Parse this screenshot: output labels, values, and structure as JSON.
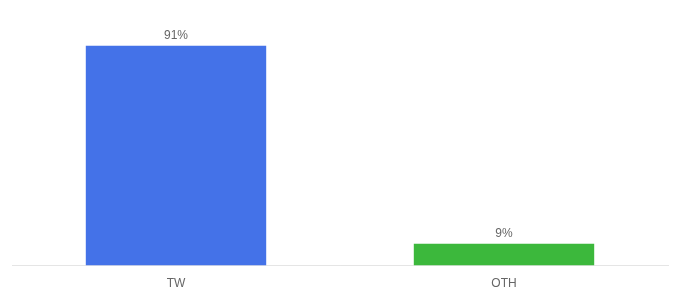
{
  "chart_data": {
    "type": "bar",
    "categories": [
      "TW",
      "OTH"
    ],
    "values": [
      91,
      9
    ],
    "value_labels": [
      "91%",
      "9%"
    ],
    "colors": [
      "#4472e8",
      "#3cb83c"
    ],
    "ylim": [
      0,
      100
    ],
    "grid": false,
    "data_labels": true,
    "tick_labels": "x"
  }
}
